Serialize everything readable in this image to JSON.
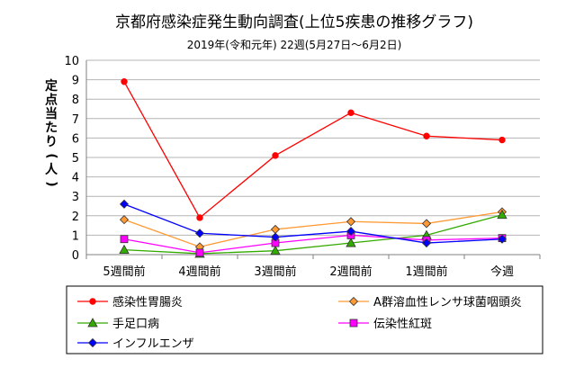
{
  "chart_data": {
    "type": "line",
    "title": "京都府感染症発生動向調査(上位5疾患の推移グラフ)",
    "subtitle": "2019年(令和元年) 22週(5月27日～6月2日)",
    "ylabel": "定点当たり(人)",
    "xlabel": "",
    "categories": [
      "5週間前",
      "4週間前",
      "3週間前",
      "2週間前",
      "1週間前",
      "今週"
    ],
    "ylim": [
      0,
      10
    ],
    "yticks": [
      0,
      1,
      2,
      3,
      4,
      5,
      6,
      7,
      8,
      9,
      10
    ],
    "grid": true,
    "legend_position": "bottom",
    "series": [
      {
        "name": "感染性胃腸炎",
        "color": "#ff0000",
        "marker": "circle",
        "values": [
          8.9,
          1.9,
          5.1,
          7.3,
          6.1,
          5.9
        ]
      },
      {
        "name": "A群溶血性レンサ球菌咽頭炎",
        "color": "#ff9933",
        "marker": "diamond",
        "values": [
          1.8,
          0.4,
          1.3,
          1.7,
          1.6,
          2.2
        ]
      },
      {
        "name": "手足口病",
        "color": "#33aa00",
        "marker": "triangle",
        "values": [
          0.25,
          0.05,
          0.2,
          0.6,
          1.0,
          2.05
        ]
      },
      {
        "name": "伝染性紅斑",
        "color": "#ff00ff",
        "marker": "square",
        "values": [
          0.8,
          0.1,
          0.6,
          1.0,
          0.75,
          0.85
        ]
      },
      {
        "name": "インフルエンザ",
        "color": "#0000ff",
        "marker": "diamond",
        "values": [
          2.6,
          1.1,
          0.9,
          1.2,
          0.6,
          0.8
        ]
      }
    ]
  }
}
